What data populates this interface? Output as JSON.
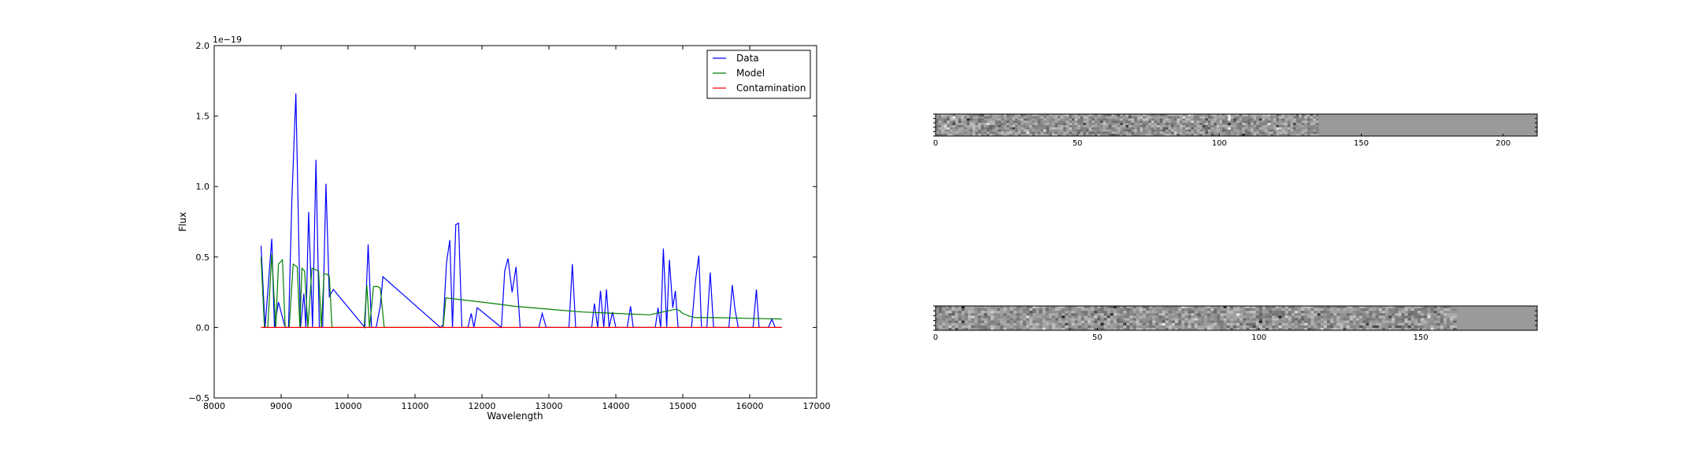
{
  "chart_data": [
    {
      "type": "line",
      "title": "",
      "xlabel": "Wavelength",
      "ylabel": "Flux",
      "offset_text": "1e−19",
      "scale": 1e-19,
      "xlim": [
        8000,
        17000
      ],
      "ylim": [
        -0.5,
        2.0
      ],
      "xticks": [
        8000,
        9000,
        10000,
        11000,
        12000,
        13000,
        14000,
        15000,
        16000,
        17000
      ],
      "yticks": [
        -0.5,
        0.0,
        0.5,
        1.0,
        1.5,
        2.0
      ],
      "ytick_labels": [
        "−0.5",
        "0.0",
        "0.5",
        "1.0",
        "1.5",
        "2.0"
      ],
      "grid": false,
      "legend": {
        "placement": "top-right",
        "entries": [
          "Data",
          "Model",
          "Contamination"
        ]
      },
      "series": [
        {
          "name": "Data",
          "color": "#0000ff",
          "x": [
            8700,
            8760,
            8860,
            8900,
            8960,
            9060,
            9110,
            9160,
            9220,
            9290,
            9340,
            9370,
            9410,
            9470,
            9520,
            9570,
            9620,
            9670,
            9720,
            9780,
            10250,
            10300,
            10350,
            10420,
            10480,
            10520,
            11380,
            11420,
            11470,
            11520,
            11560,
            11610,
            11650,
            11700,
            11790,
            11840,
            11880,
            11930,
            12290,
            12340,
            12390,
            12450,
            12510,
            12570,
            12850,
            12900,
            12960,
            13300,
            13350,
            13400,
            13640,
            13680,
            13730,
            13770,
            13820,
            13860,
            13900,
            13950,
            14000,
            14170,
            14220,
            14260,
            14590,
            14630,
            14670,
            14710,
            14760,
            14800,
            14850,
            14890,
            14930,
            15130,
            15190,
            15240,
            15280,
            15360,
            15410,
            15460,
            15690,
            15740,
            15780,
            15830,
            16050,
            16100,
            16140,
            16280,
            16330,
            16380,
            16480
          ],
          "y": [
            0.58,
            0.0,
            0.63,
            0.0,
            0.18,
            0.0,
            0.0,
            0.9,
            1.66,
            0.0,
            0.24,
            0.0,
            0.82,
            0.0,
            1.19,
            0.0,
            0.0,
            1.02,
            0.22,
            0.27,
            0.0,
            0.59,
            0.0,
            0.0,
            0.15,
            0.36,
            0.0,
            0.02,
            0.46,
            0.62,
            0.0,
            0.73,
            0.74,
            0.0,
            0.0,
            0.1,
            0.0,
            0.14,
            0.0,
            0.4,
            0.49,
            0.25,
            0.43,
            0.0,
            0.0,
            0.1,
            0.0,
            0.0,
            0.45,
            0.0,
            0.0,
            0.17,
            0.0,
            0.26,
            0.0,
            0.27,
            0.0,
            0.11,
            0.0,
            0.0,
            0.15,
            0.0,
            0.0,
            0.14,
            0.0,
            0.56,
            0.0,
            0.48,
            0.14,
            0.26,
            0.0,
            0.0,
            0.33,
            0.51,
            0.0,
            0.0,
            0.39,
            0.0,
            0.0,
            0.3,
            0.13,
            0.0,
            0.0,
            0.27,
            0.0,
            0.0,
            0.06,
            0.0,
            0.0
          ]
        },
        {
          "name": "Model",
          "color": "#008000",
          "x": [
            8700,
            8750,
            8800,
            8860,
            8920,
            8960,
            9020,
            9060,
            9120,
            9180,
            9240,
            9280,
            9310,
            9350,
            9400,
            9460,
            9520,
            9560,
            9600,
            9640,
            9680,
            9720,
            9760,
            9800,
            10240,
            10280,
            10320,
            10380,
            10440,
            10480,
            10540,
            11380,
            11420,
            11460,
            12000,
            12500,
            13000,
            13500,
            14000,
            14500,
            14700,
            14800,
            14900,
            14950,
            15000,
            15100,
            15200,
            15500,
            16000,
            16480
          ],
          "y": [
            0.5,
            0.0,
            0.0,
            0.52,
            0.0,
            0.45,
            0.48,
            0.0,
            0.0,
            0.45,
            0.43,
            0.0,
            0.42,
            0.4,
            0.0,
            0.42,
            0.41,
            0.4,
            0.0,
            0.38,
            0.38,
            0.36,
            0.0,
            0.0,
            0.0,
            0.3,
            0.0,
            0.29,
            0.29,
            0.28,
            0.0,
            0.0,
            0.0,
            0.21,
            0.18,
            0.15,
            0.13,
            0.11,
            0.1,
            0.09,
            0.11,
            0.12,
            0.13,
            0.12,
            0.1,
            0.08,
            0.07,
            0.07,
            0.065,
            0.06
          ]
        },
        {
          "name": "Contamination",
          "color": "#ff0000",
          "x": [
            8700,
            16480
          ],
          "y": [
            0.0,
            0.0
          ]
        }
      ]
    },
    {
      "type": "heatmap",
      "title": "",
      "xticks": [
        0,
        50,
        100,
        150,
        200
      ],
      "xlim": [
        0,
        212
      ],
      "data_extent_x": 135,
      "rows": 10,
      "seed": 17
    },
    {
      "type": "heatmap",
      "title": "",
      "xticks": [
        0,
        50,
        100,
        150
      ],
      "xlim": [
        0,
        186
      ],
      "data_extent_x": 161,
      "rows": 10,
      "seed": 53
    }
  ]
}
